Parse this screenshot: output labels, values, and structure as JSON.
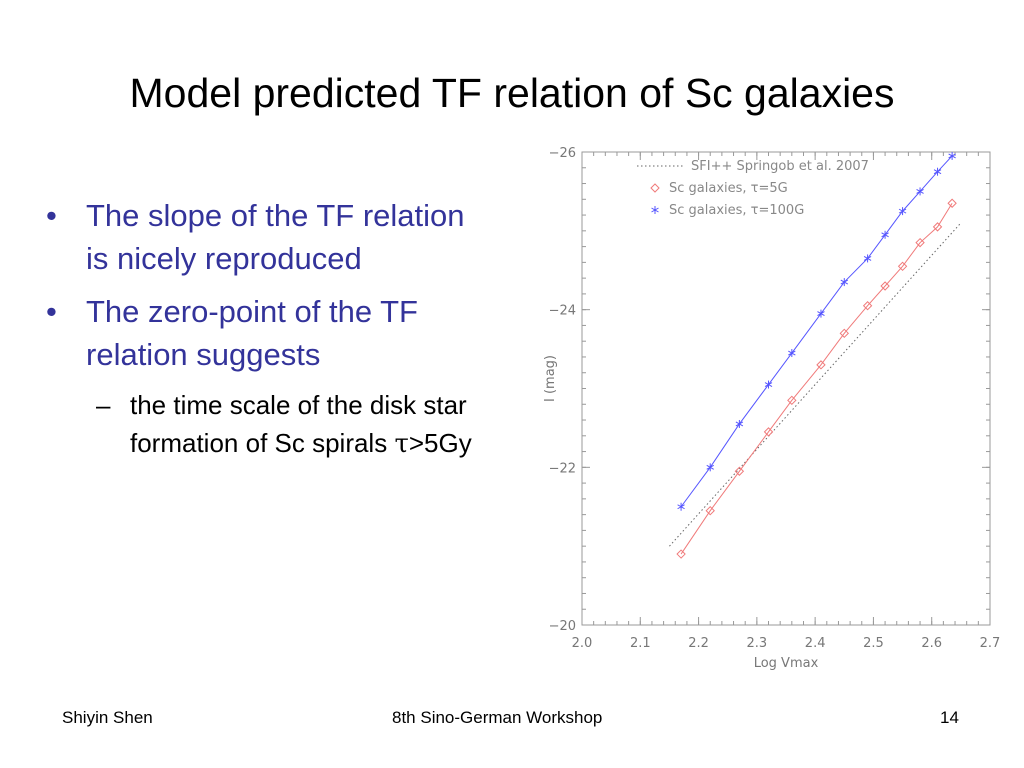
{
  "slide": {
    "title": "Model predicted TF relation of Sc galaxies",
    "bullets": [
      {
        "text": "The slope of the TF relation is nicely reproduced"
      },
      {
        "text": "The zero-point of the TF relation suggests"
      }
    ],
    "subbullet": {
      "text": "the time scale of the disk star formation of Sc spirals ",
      "tau": "τ",
      "suffix": ">5Gy"
    },
    "footer": {
      "author": "Shiyin Shen",
      "event": "8th Sino-German Workshop",
      "page": "14"
    }
  },
  "chart_data": {
    "type": "scatter",
    "xlabel": "Log Vmax",
    "ylabel": "I (mag)",
    "xlim": [
      2.0,
      2.7
    ],
    "ylim": [
      -20,
      -26
    ],
    "xticks": [
      "2.0",
      "2.1",
      "2.2",
      "2.3",
      "2.4",
      "2.5",
      "2.6",
      "2.7"
    ],
    "yticks": [
      "−20",
      "−22",
      "−24",
      "−26"
    ],
    "legend_position": "top-right",
    "colors": {
      "sfi": "#666666",
      "tau5": "#f07a7a",
      "tau100": "#5555ff",
      "axis": "#999999"
    },
    "series": [
      {
        "name": "SFI++ Springob et al. 2007",
        "style": "dotted-line",
        "x": [
          2.15,
          2.65
        ],
        "y": [
          -21.0,
          -25.1
        ]
      },
      {
        "name": "Sc galaxies, τ=5G",
        "style": "diamond-line",
        "x": [
          2.17,
          2.22,
          2.27,
          2.32,
          2.36,
          2.41,
          2.45,
          2.49,
          2.52,
          2.55,
          2.58,
          2.61,
          2.635
        ],
        "y": [
          -20.9,
          -21.45,
          -21.95,
          -22.45,
          -22.85,
          -23.3,
          -23.7,
          -24.05,
          -24.3,
          -24.55,
          -24.85,
          -25.05,
          -25.35
        ]
      },
      {
        "name": "Sc galaxies, τ=100G",
        "style": "asterisk-line",
        "x": [
          2.17,
          2.22,
          2.27,
          2.32,
          2.36,
          2.41,
          2.45,
          2.49,
          2.52,
          2.55,
          2.58,
          2.61,
          2.635
        ],
        "y": [
          -21.5,
          -22.0,
          -22.55,
          -23.05,
          -23.45,
          -23.95,
          -24.35,
          -24.65,
          -24.95,
          -25.25,
          -25.5,
          -25.75,
          -25.95
        ]
      }
    ]
  }
}
